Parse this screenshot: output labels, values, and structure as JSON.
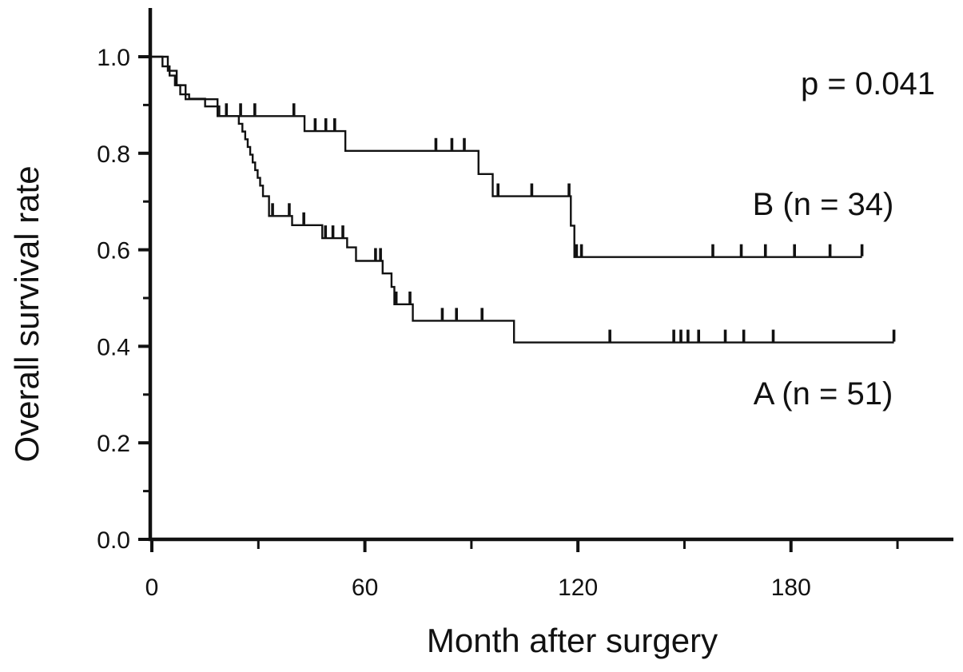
{
  "figure": {
    "kind": "kaplan-meier-survival-plot",
    "background_color": "#ffffff",
    "line_color": "#111111",
    "text_color": "#111111"
  },
  "chart_data": {
    "type": "line",
    "subtype": "kaplan-meier-step",
    "title": "",
    "xlabel": "Month after surgery",
    "ylabel": "Overall survival rate",
    "xlim": [
      0,
      226
    ],
    "ylim": [
      0.0,
      1.08
    ],
    "grid": "off",
    "legend_position": "inline-labels",
    "x_major_ticks": [
      0,
      60,
      120,
      180
    ],
    "x_minor_ticks": [
      30,
      90,
      150,
      210
    ],
    "y_major_ticks": [
      1.0,
      0.8,
      0.6,
      0.4,
      0.2,
      0.0
    ],
    "y_minor_ticks": [
      0.9,
      0.7,
      0.5,
      0.3,
      0.1
    ],
    "y_tick_decimals": 1,
    "annotations": [
      {
        "id": "p-value",
        "text": "p = 0.041"
      },
      {
        "id": "series-b-label",
        "text": "B (n = 34)"
      },
      {
        "id": "series-a-label",
        "text": "A (n = 51)"
      }
    ],
    "series": [
      {
        "name": "B",
        "n": 34,
        "label": "B (n = 34)",
        "steps": [
          [
            0,
            1.0
          ],
          [
            4.5,
            0.971
          ],
          [
            7,
            0.941
          ],
          [
            9.5,
            0.912
          ],
          [
            18.5,
            0.877
          ],
          [
            43,
            0.846
          ],
          [
            54.5,
            0.805
          ],
          [
            92,
            0.757
          ],
          [
            96,
            0.711
          ],
          [
            118,
            0.65
          ],
          [
            119,
            0.585
          ]
        ],
        "end_time": 200,
        "censor_times": [
          21,
          25,
          29,
          40,
          46,
          49,
          51.5,
          80,
          84.5,
          88,
          97.5,
          107,
          117.5,
          119.6,
          121,
          158,
          166,
          172.8,
          181,
          191,
          200
        ]
      },
      {
        "name": "A",
        "n": 51,
        "label": "A (n = 51)",
        "steps": [
          [
            0,
            1.0
          ],
          [
            3,
            0.98
          ],
          [
            5,
            0.961
          ],
          [
            6.5,
            0.941
          ],
          [
            8,
            0.922
          ],
          [
            10.5,
            0.913
          ],
          [
            15,
            0.897
          ],
          [
            19,
            0.877
          ],
          [
            24.5,
            0.861
          ],
          [
            25.5,
            0.845
          ],
          [
            26.3,
            0.829
          ],
          [
            27,
            0.813
          ],
          [
            27.7,
            0.797
          ],
          [
            28.4,
            0.781
          ],
          [
            29.1,
            0.765
          ],
          [
            29.8,
            0.749
          ],
          [
            30.5,
            0.733
          ],
          [
            31.3,
            0.711
          ],
          [
            33,
            0.67
          ],
          [
            39.5,
            0.651
          ],
          [
            48,
            0.624
          ],
          [
            55,
            0.605
          ],
          [
            57.5,
            0.577
          ],
          [
            65,
            0.551
          ],
          [
            67.5,
            0.523
          ],
          [
            68.3,
            0.487
          ],
          [
            73.5,
            0.453
          ],
          [
            102,
            0.408
          ]
        ],
        "end_time": 209,
        "censor_times": [
          34,
          38.7,
          42.8,
          48.9,
          51,
          53.8,
          63,
          64.4,
          68.8,
          72.7,
          81.8,
          85.8,
          93,
          129,
          147,
          149,
          151,
          154,
          161.5,
          166.7,
          175,
          209
        ]
      }
    ]
  }
}
